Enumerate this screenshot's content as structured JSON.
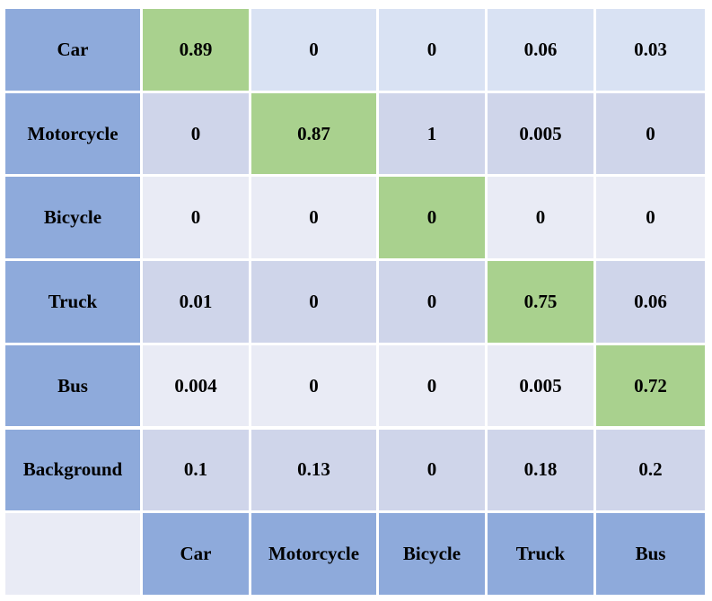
{
  "chart_data": {
    "type": "heatmap",
    "rows": [
      "Car",
      "Motorcycle",
      "Bicycle",
      "Truck",
      "Bus",
      "Background"
    ],
    "columns": [
      "Car",
      "Motorcycle",
      "Bicycle",
      "Truck",
      "Bus"
    ],
    "values": [
      [
        "0.89",
        "0",
        "0",
        "0.06",
        "0.03"
      ],
      [
        "0",
        "0.87",
        "1",
        "0.005",
        "0"
      ],
      [
        "0",
        "0",
        "0",
        "0",
        "0"
      ],
      [
        "0.01",
        "0",
        "0",
        "0.75",
        "0.06"
      ],
      [
        "0.004",
        "0",
        "0",
        "0.005",
        "0.72"
      ],
      [
        "0.1",
        "0.13",
        "0",
        "0.18",
        "0.2"
      ]
    ],
    "diagonal_highlight": true
  },
  "colors": {
    "header": "#8eaadb",
    "diagonal": "#a9d18e",
    "row_odd": "#d9e2f3",
    "row_even": "#cfd5ea",
    "row_light": "#e9ebf5",
    "corner": "#e9ebf5",
    "gridline": "#ffffff"
  }
}
